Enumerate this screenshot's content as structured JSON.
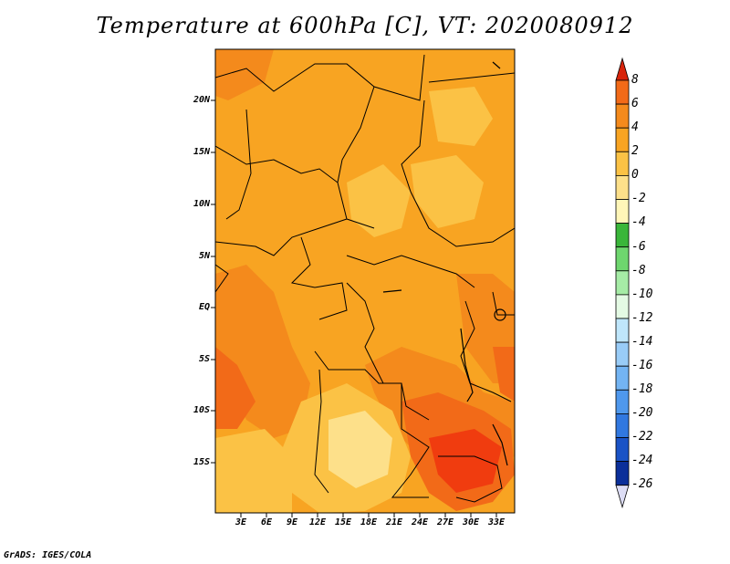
{
  "title": "Temperature at 600hPa [C], VT: 2020080912",
  "credit": "GrADS: IGES/COLA",
  "map": {
    "lat_ticks": [
      "20N",
      "15N",
      "10N",
      "5N",
      "EQ",
      "5S",
      "10S",
      "15S"
    ],
    "lon_ticks": [
      "3E",
      "6E",
      "9E",
      "12E",
      "15E",
      "18E",
      "21E",
      "24E",
      "27E",
      "30E",
      "33E"
    ]
  },
  "colorbar": {
    "labels": [
      "8",
      "6",
      "4",
      "2",
      "0",
      "-2",
      "-4",
      "-6",
      "-8",
      "-10",
      "-12",
      "-14",
      "-16",
      "-18",
      "-20",
      "-22",
      "-24",
      "-26"
    ],
    "colors": [
      "#f03c0f",
      "#f26a18",
      "#f48a1c",
      "#f8a422",
      "#fbc245",
      "#fde08a",
      "#fff6b8",
      "#3ab63a",
      "#6ed66e",
      "#a6eca6",
      "#e4fae4",
      "#bfe6fb",
      "#99ccf7",
      "#73b4f3",
      "#4f98ed",
      "#3178e0",
      "#1a53c6",
      "#0b2f9a",
      "#08145f"
    ],
    "top_arrow_color": "#d8240b",
    "bottom_arrow_color": "#ddddf5"
  }
}
